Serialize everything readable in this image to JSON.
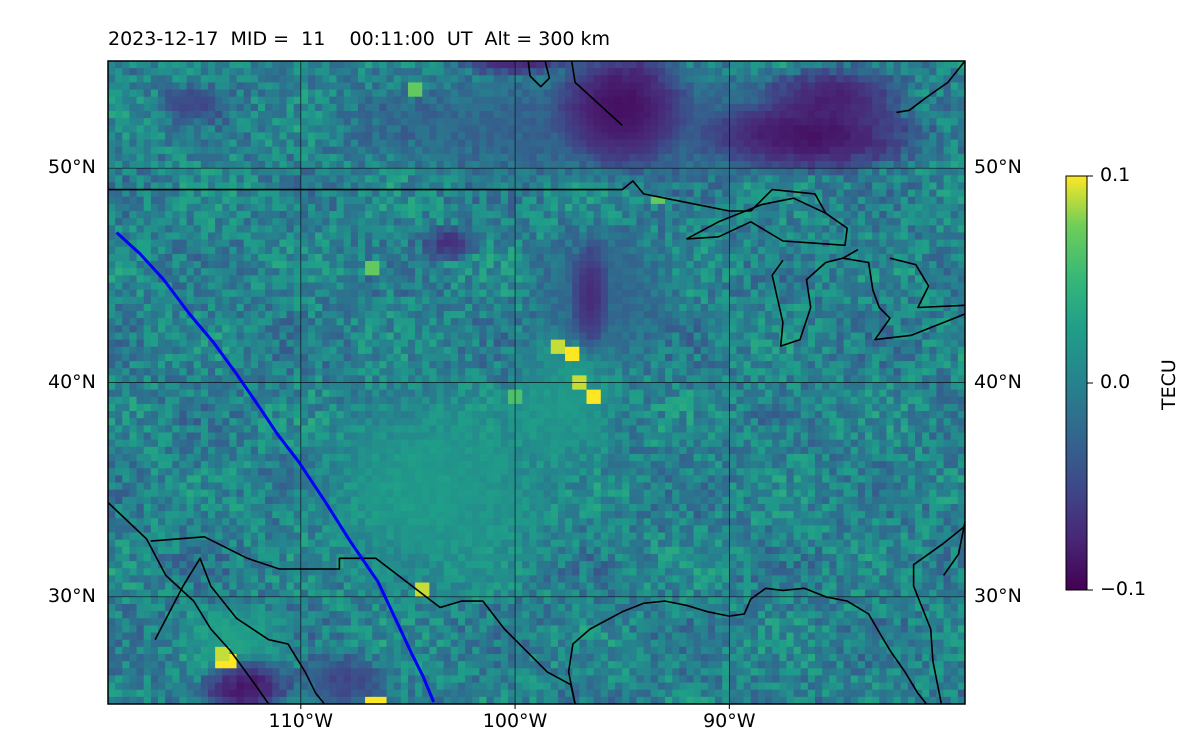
{
  "chart_data": {
    "type": "heatmap",
    "title": "2023-12-17  MID =  11    00:11:00  UT  Alt = 300 km",
    "xlabel": "",
    "ylabel": "",
    "xlim": [
      -119,
      -79
    ],
    "ylim": [
      25,
      55
    ],
    "x_ticks": [
      {
        "value": -110,
        "label": "110°W"
      },
      {
        "value": -100,
        "label": "100°W"
      },
      {
        "value": -90,
        "label": "90°W"
      }
    ],
    "y_ticks": [
      {
        "value": 30,
        "label": "30°N"
      },
      {
        "value": 40,
        "label": "40°N"
      },
      {
        "value": 50,
        "label": "50°N"
      }
    ],
    "grid": true,
    "colormap": "viridis",
    "colorbar": {
      "label": "TECU",
      "min": -0.1,
      "max": 0.1,
      "ticks": [
        {
          "value": 0.1,
          "label": "0.1"
        },
        {
          "value": 0.0,
          "label": "0.0"
        },
        {
          "value": -0.1,
          "label": "−0.1"
        }
      ]
    },
    "track": {
      "color": "#0000ff",
      "points": [
        [
          -118.6,
          47.0
        ],
        [
          -117.5,
          46.0
        ],
        [
          -116.4,
          44.8
        ],
        [
          -115.2,
          43.2
        ],
        [
          -114.1,
          41.9
        ],
        [
          -113.0,
          40.4
        ],
        [
          -111.9,
          38.8
        ],
        [
          -111.1,
          37.6
        ],
        [
          -110.1,
          36.3
        ],
        [
          -108.9,
          34.5
        ],
        [
          -107.7,
          32.6
        ],
        [
          -106.4,
          30.7
        ],
        [
          -105.5,
          28.8
        ],
        [
          -104.8,
          27.3
        ],
        [
          -104.3,
          26.3
        ],
        [
          -103.8,
          25.1
        ]
      ]
    },
    "anomalies": [
      {
        "lon": -103.5,
        "lat": 35.0,
        "w": 7.0,
        "h": 6.0,
        "v": 0.025
      },
      {
        "lon": -96.0,
        "lat": 44.0,
        "w": 4.0,
        "h": 4.0,
        "v": -0.03
      },
      {
        "lon": -97.5,
        "lat": 39.0,
        "w": 3.0,
        "h": 3.5,
        "v": 0.025
      },
      {
        "lon": -113.0,
        "lat": 28.0,
        "w": 3.0,
        "h": 2.0,
        "v": 0.03
      },
      {
        "lon": -95.0,
        "lat": 52.0,
        "w": 15.0,
        "h": 3.0,
        "v": -0.04
      }
    ],
    "hotspots": [
      {
        "lon": -96.3,
        "lat": 39.5,
        "v": 0.1
      },
      {
        "lon": -97.3,
        "lat": 41.3,
        "v": 0.1
      },
      {
        "lon": -97.9,
        "lat": 41.7,
        "v": 0.09
      },
      {
        "lon": -97.0,
        "lat": 40.0,
        "v": 0.09
      },
      {
        "lon": -100.0,
        "lat": 39.3,
        "v": 0.06
      },
      {
        "lon": -104.2,
        "lat": 30.5,
        "v": 0.09
      },
      {
        "lon": -113.5,
        "lat": 27.0,
        "v": 0.1
      },
      {
        "lon": -106.5,
        "lat": 25.1,
        "v": 0.1
      },
      {
        "lon": -104.7,
        "lat": 53.8,
        "v": 0.07
      },
      {
        "lon": -113.6,
        "lat": 27.3,
        "v": 0.09
      },
      {
        "lon": -106.8,
        "lat": 45.2,
        "v": 0.07
      },
      {
        "lon": -93.4,
        "lat": 48.5,
        "v": 0.07
      }
    ],
    "coldspots": [
      {
        "lon": -95.0,
        "lat": 53.0,
        "w": 3.5,
        "h": 3.5,
        "v": -0.1
      },
      {
        "lon": -86.0,
        "lat": 51.5,
        "w": 6.0,
        "h": 2.0,
        "v": -0.1
      },
      {
        "lon": -85.0,
        "lat": 53.5,
        "w": 4.0,
        "h": 1.5,
        "v": -0.09
      },
      {
        "lon": -112.5,
        "lat": 25.8,
        "w": 2.5,
        "h": 1.5,
        "v": -0.1
      },
      {
        "lon": -100.0,
        "lat": 55.0,
        "w": 3.0,
        "h": 0.8,
        "v": -0.09
      },
      {
        "lon": -103.0,
        "lat": 46.5,
        "w": 1.5,
        "h": 1.0,
        "v": -0.08
      },
      {
        "lon": -96.5,
        "lat": 44.0,
        "w": 1.0,
        "h": 3.0,
        "v": -0.08
      },
      {
        "lon": -115.0,
        "lat": 53.0,
        "w": 2.0,
        "h": 1.0,
        "v": -0.06
      },
      {
        "lon": -108.0,
        "lat": 26.0,
        "w": 2.5,
        "h": 1.5,
        "v": -0.06
      }
    ],
    "coastlines": [
      [
        [
          -119,
          49
        ],
        [
          -95,
          49
        ],
        [
          -94.5,
          49.4
        ],
        [
          -94.0,
          48.8
        ],
        [
          -92.5,
          48.5
        ],
        [
          -90.0,
          48.0
        ],
        [
          -89.0,
          48.0
        ]
      ],
      [
        [
          -119,
          34.4
        ],
        [
          -117.2,
          32.7
        ],
        [
          -116.3,
          31.0
        ],
        [
          -115.0,
          29.8
        ],
        [
          -114.2,
          28.5
        ],
        [
          -113.3,
          27.5
        ],
        [
          -112.2,
          26.0
        ],
        [
          -111.5,
          25.0
        ]
      ],
      [
        [
          -117.0,
          32.6
        ],
        [
          -114.5,
          32.8
        ],
        [
          -112.5,
          31.8
        ],
        [
          -111.0,
          31.3
        ],
        [
          -108.2,
          31.3
        ],
        [
          -108.2,
          31.8
        ],
        [
          -106.5,
          31.8
        ],
        [
          -104.8,
          30.5
        ],
        [
          -103.5,
          29.5
        ],
        [
          -102.5,
          29.8
        ],
        [
          -101.5,
          29.8
        ],
        [
          -100.5,
          28.5
        ],
        [
          -99.5,
          27.5
        ],
        [
          -98.5,
          26.5
        ],
        [
          -97.4,
          25.9
        ],
        [
          -97.2,
          25.0
        ]
      ],
      [
        [
          -116.8,
          28.0
        ],
        [
          -115.5,
          30.5
        ],
        [
          -114.7,
          31.8
        ],
        [
          -114.2,
          30.5
        ],
        [
          -113.0,
          29.0
        ],
        [
          -111.5,
          28.0
        ],
        [
          -110.6,
          27.8
        ],
        [
          -109.8,
          26.5
        ],
        [
          -109.3,
          25.5
        ],
        [
          -108.9,
          25.0
        ]
      ],
      [
        [
          -97.2,
          25.0
        ],
        [
          -97.5,
          26.5
        ],
        [
          -97.3,
          27.8
        ],
        [
          -96.5,
          28.5
        ],
        [
          -95.0,
          29.3
        ],
        [
          -94.0,
          29.7
        ],
        [
          -93.0,
          29.8
        ],
        [
          -92.0,
          29.6
        ],
        [
          -91.0,
          29.3
        ],
        [
          -90.0,
          29.1
        ],
        [
          -89.3,
          29.2
        ],
        [
          -89.0,
          29.9
        ],
        [
          -88.3,
          30.4
        ],
        [
          -87.5,
          30.3
        ],
        [
          -86.5,
          30.4
        ],
        [
          -85.5,
          30.0
        ],
        [
          -84.5,
          29.8
        ],
        [
          -83.5,
          29.2
        ],
        [
          -82.8,
          28.0
        ],
        [
          -82.5,
          27.5
        ],
        [
          -81.8,
          26.5
        ],
        [
          -81.2,
          25.5
        ],
        [
          -80.8,
          25.0
        ]
      ],
      [
        [
          -80.1,
          25.0
        ],
        [
          -80.5,
          27.0
        ],
        [
          -80.6,
          28.5
        ],
        [
          -81.0,
          29.5
        ],
        [
          -81.4,
          30.5
        ],
        [
          -81.4,
          31.5
        ],
        [
          -80.0,
          32.5
        ],
        [
          -79.0,
          33.3
        ]
      ],
      [
        [
          -92.0,
          46.7
        ],
        [
          -90.5,
          46.8
        ],
        [
          -89.0,
          47.5
        ],
        [
          -87.5,
          46.6
        ],
        [
          -86.0,
          46.5
        ],
        [
          -84.6,
          46.4
        ],
        [
          -84.5,
          47.2
        ],
        [
          -85.5,
          47.9
        ],
        [
          -87.0,
          48.6
        ],
        [
          -88.5,
          48.3
        ],
        [
          -89.5,
          47.9
        ],
        [
          -90.5,
          47.5
        ],
        [
          -92.0,
          46.7
        ]
      ],
      [
        [
          -87.5,
          45.7
        ],
        [
          -88.0,
          45.0
        ],
        [
          -87.5,
          42.8
        ],
        [
          -87.6,
          41.7
        ],
        [
          -86.7,
          42.0
        ],
        [
          -86.2,
          43.5
        ],
        [
          -86.4,
          44.8
        ],
        [
          -85.5,
          45.6
        ],
        [
          -84.7,
          45.8
        ],
        [
          -84.0,
          46.2
        ]
      ],
      [
        [
          -84.7,
          45.8
        ],
        [
          -83.5,
          45.6
        ],
        [
          -83.3,
          44.3
        ],
        [
          -83.0,
          43.5
        ],
        [
          -82.5,
          43.0
        ],
        [
          -83.2,
          42.0
        ],
        [
          -81.5,
          42.2
        ],
        [
          -79.5,
          43.0
        ],
        [
          -79.0,
          43.2
        ]
      ],
      [
        [
          -82.5,
          45.8
        ],
        [
          -81.3,
          45.5
        ],
        [
          -80.7,
          44.5
        ],
        [
          -81.2,
          43.5
        ],
        [
          -79.0,
          43.6
        ]
      ],
      [
        [
          -95.0,
          59
        ],
        [
          -96.8,
          56.6
        ],
        [
          -98.6,
          55.4
        ],
        [
          -99.4,
          55.1
        ],
        [
          -99.3,
          54.3
        ],
        [
          -98.8,
          53.8
        ],
        [
          -98.4,
          54.2
        ],
        [
          -98.6,
          55.0
        ],
        [
          -97.5,
          55.9
        ],
        [
          -97.2,
          54.0
        ],
        [
          -95.0,
          52.0
        ]
      ],
      [
        [
          -79.0,
          55.0
        ],
        [
          -79.8,
          54.0
        ],
        [
          -80.8,
          53.3
        ],
        [
          -81.6,
          52.7
        ],
        [
          -82.2,
          52.6
        ]
      ],
      [
        [
          -79.0,
          33.5
        ],
        [
          -79.3,
          32.0
        ],
        [
          -80.0,
          31.0
        ]
      ],
      [
        [
          -89.0,
          48.0
        ],
        [
          -88.0,
          49.0
        ],
        [
          -86.0,
          48.8
        ],
        [
          -85.5,
          47.9
        ]
      ]
    ]
  }
}
